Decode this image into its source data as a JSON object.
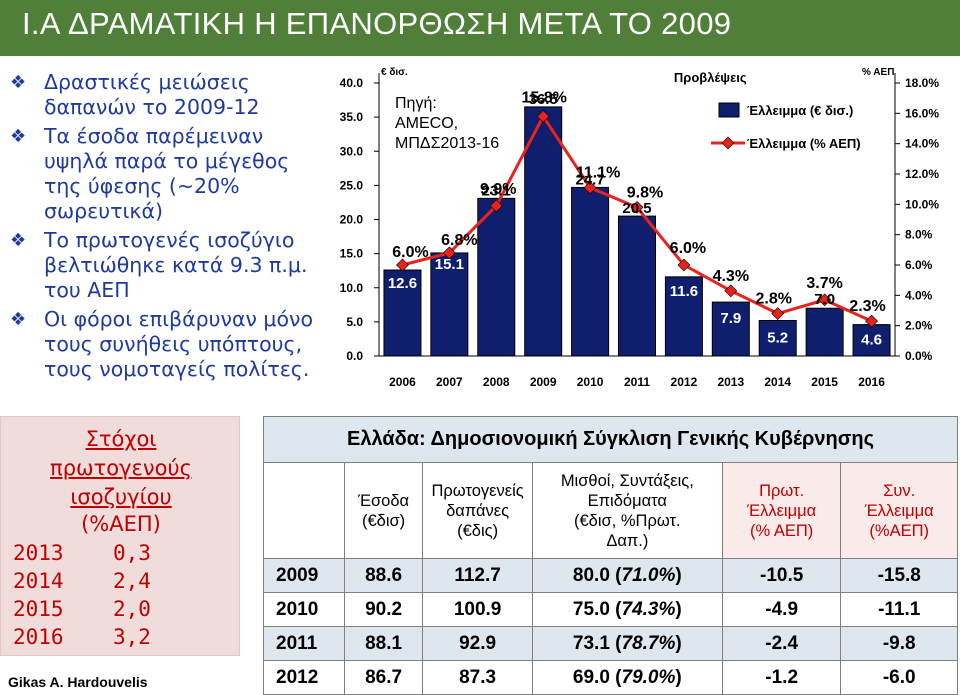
{
  "title": "I.A       ΔΡΑΜΑΤΙΚΗ Η ΕΠΑΝΟΡΘΩΣΗ ΜΕΤΑ ΤΟ 2009",
  "bullets": [
    "Δραστικές μειώσεις δαπανών το 2009-12",
    "Τα έσοδα παρέμειναν υψηλά παρά το μέγεθος της ύφεσης (~20% σωρευτικά)",
    "Το πρωτογενές ισοζύγιο βελτιώθηκε κατά 9.3 π.μ. του ΑΕΠ",
    "Οι φόροι επιβάρυναν μόνο τους συνήθεις υπόπτους, τους νομοταγείς πολίτες."
  ],
  "colors": {
    "bar": "#0f1f6e",
    "line": "#e8231e",
    "title_bar": "#4f7f38",
    "bullet_text": "#1f3a9e",
    "targets_red": "#c00000"
  },
  "chart_data": {
    "type": "bar",
    "categories": [
      "2006",
      "2007",
      "2008",
      "2009",
      "2010",
      "2011",
      "2012",
      "2013",
      "2014",
      "2015",
      "2016"
    ],
    "series": [
      {
        "name": "Έλλειμμα (€ δισ.)",
        "type": "bar",
        "axis": "left",
        "values": [
          12.6,
          15.1,
          23.1,
          36.5,
          24.7,
          20.5,
          11.6,
          7.9,
          5.2,
          7.0,
          4.6
        ]
      },
      {
        "name": "Έλλειμμα (% ΑΕΠ)",
        "type": "line",
        "axis": "right",
        "values": [
          6.0,
          6.8,
          9.9,
          15.8,
          11.1,
          9.8,
          6.0,
          4.3,
          2.8,
          3.7,
          2.3
        ]
      }
    ],
    "bar_labels": [
      "12.6",
      "15.1",
      "23.1",
      "36.5",
      "24.7",
      "20.5",
      "11.6",
      "7.9",
      "5.2",
      "7.0",
      "4.6"
    ],
    "line_labels": [
      "6.0%",
      "6.8%",
      "9.9%",
      "15.8%",
      "11.1%",
      "9.8%",
      "6.0%",
      "4.3%",
      "2.8%",
      "3.7%",
      "2.3%"
    ],
    "left_unit": "€ δισ.",
    "right_unit": "% ΑΕΠ",
    "ylim": [
      0,
      40
    ],
    "y2lim": [
      0,
      18
    ],
    "left_ticks": [
      "0.0",
      "5.0",
      "10.0",
      "15.0",
      "20.0",
      "25.0",
      "30.0",
      "35.0",
      "40.0"
    ],
    "right_ticks": [
      "0.0%",
      "2.0%",
      "4.0%",
      "6.0%",
      "8.0%",
      "10.0%",
      "12.0%",
      "14.0%",
      "16.0%",
      "18.0%"
    ],
    "source_lines": [
      "Πηγή:",
      "AMECO,",
      "ΜΠΔΣ2013-16"
    ],
    "forecast_label": "Προβλέψεις",
    "forecast_from": "2012",
    "legend_position": "top-right",
    "grid": false
  },
  "targets": {
    "title_lines": [
      "Στόχοι",
      "πρωτογενούς",
      "ισοζυγίου"
    ],
    "unit": "(%ΑΕΠ)",
    "rows": [
      {
        "year": "2013",
        "value": "0,3"
      },
      {
        "year": "2014",
        "value": "2,4"
      },
      {
        "year": "2015",
        "value": "2,0"
      },
      {
        "year": "2016",
        "value": "3,2"
      }
    ]
  },
  "author": "Gikas A. Hardouvelis",
  "table": {
    "title": "Ελλάδα: Δημοσιονομική Σύγκλιση Γενικής Κυβέρνησης",
    "headers": [
      [
        "Έσοδα",
        "(€δισ)"
      ],
      [
        "Πρωτογενείς",
        "δαπάνες",
        "(€δις)"
      ],
      [
        "Μισθοί, Συντάξεις,",
        "Επιδόματα",
        "(€δισ, %Πρωτ.",
        "Δαπ.)"
      ],
      [
        "Πρωτ.",
        "Έλλειμμα",
        "(% ΑΕΠ)"
      ],
      [
        "Συν.",
        "Έλλειμμα",
        "(%ΑΕΠ)"
      ]
    ],
    "rows": [
      {
        "year": "2009",
        "revenue": "88.6",
        "primary_spending": "112.7",
        "wages_main": "80.0 (",
        "wages_pct": "71.0%",
        "wages_close": ")",
        "primary_deficit": "-10.5",
        "total_deficit": "-15.8"
      },
      {
        "year": "2010",
        "revenue": "90.2",
        "primary_spending": "100.9",
        "wages_main": "75.0 (",
        "wages_pct": "74.3%",
        "wages_close": ")",
        "primary_deficit": "-4.9",
        "total_deficit": "-11.1"
      },
      {
        "year": "2011",
        "revenue": "88.1",
        "primary_spending": "92.9",
        "wages_main": "73.1 (",
        "wages_pct": "78.7%",
        "wages_close": ")",
        "primary_deficit": "-2.4",
        "total_deficit": "-9.8"
      },
      {
        "year": "2012",
        "revenue": "86.7",
        "primary_spending": "87.3",
        "wages_main": "69.0 (",
        "wages_pct": "79.0%",
        "wages_close": ")",
        "primary_deficit": "-1.2",
        "total_deficit": "-6.0"
      }
    ]
  }
}
